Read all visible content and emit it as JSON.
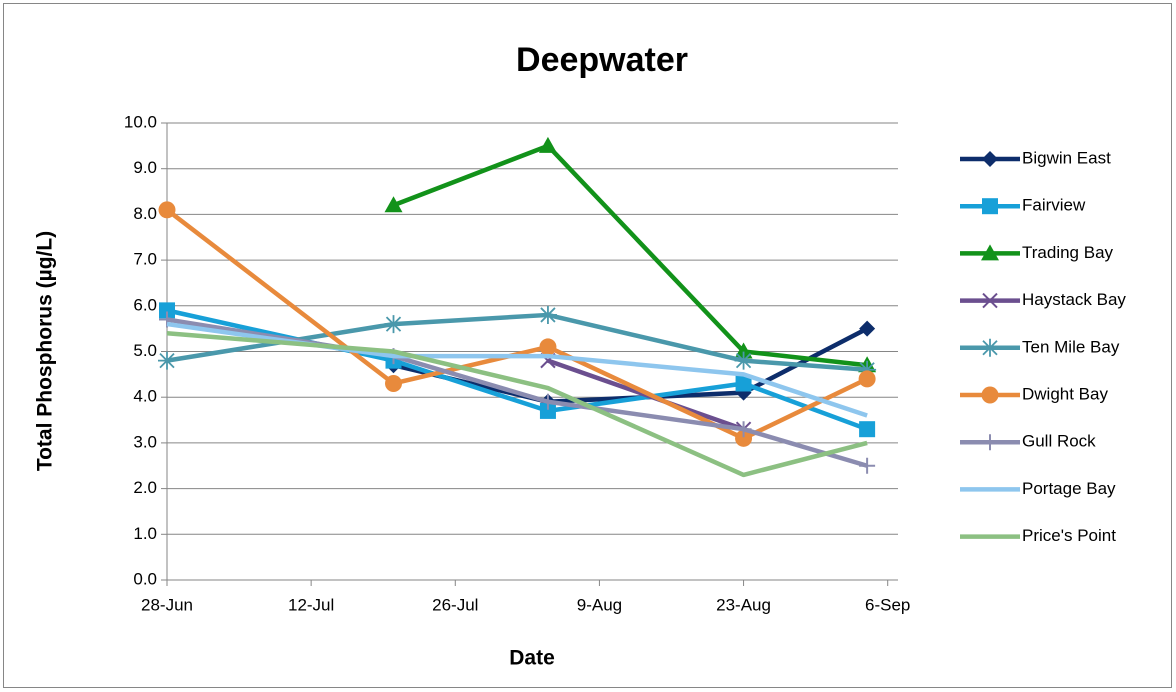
{
  "chart_data": {
    "type": "line",
    "title": "Deepwater",
    "x_label": "Date",
    "y_label": "Total Phosphorus (µg/L)",
    "x": [
      "28-Jun",
      "20-Jul",
      "4-Aug",
      "23-Aug",
      "4-Sep"
    ],
    "xlim": [
      "28-Jun",
      "7-Sep"
    ],
    "xticks": [
      "28-Jun",
      "12-Jul",
      "26-Jul",
      "9-Aug",
      "23-Aug",
      "6-Sep"
    ],
    "ylim": [
      0,
      10
    ],
    "yticks": [
      {
        "value": 0,
        "label": "0.0"
      },
      {
        "value": 1,
        "label": "1.0"
      },
      {
        "value": 2,
        "label": "2.0"
      },
      {
        "value": 3,
        "label": "3.0"
      },
      {
        "value": 4,
        "label": "4.0"
      },
      {
        "value": 5,
        "label": "5.0"
      },
      {
        "value": 6,
        "label": "6.0"
      },
      {
        "value": 7,
        "label": "7.0"
      },
      {
        "value": 8,
        "label": "8.0"
      },
      {
        "value": 9,
        "label": "9.0"
      },
      {
        "value": 10,
        "label": "10.0"
      }
    ],
    "grid": true,
    "legend": "right",
    "series": [
      {
        "name": "Bigwin East",
        "color": "#0d2d6b",
        "marker": "diamond",
        "values": [
          null,
          4.7,
          3.9,
          4.1,
          5.5
        ]
      },
      {
        "name": "Fairview",
        "color": "#17a0d8",
        "marker": "square",
        "values": [
          5.9,
          4.8,
          3.7,
          4.3,
          3.3
        ]
      },
      {
        "name": "Trading Bay",
        "color": "#12921a",
        "marker": "triangle",
        "values": [
          null,
          8.2,
          9.5,
          5.0,
          4.7
        ]
      },
      {
        "name": "Haystack Bay",
        "color": "#6b4f8f",
        "marker": "x",
        "values": [
          null,
          null,
          4.8,
          3.3,
          null
        ]
      },
      {
        "name": "Ten Mile Bay",
        "color": "#4a98ab",
        "marker": "star",
        "values": [
          4.8,
          5.6,
          5.8,
          4.8,
          4.6
        ]
      },
      {
        "name": "Dwight Bay",
        "color": "#e88a3c",
        "marker": "circle",
        "values": [
          8.1,
          4.3,
          5.1,
          3.1,
          4.4
        ]
      },
      {
        "name": "Gull Rock",
        "color": "#8b8cb0",
        "marker": "plus",
        "values": [
          5.7,
          4.9,
          3.9,
          3.3,
          2.5
        ]
      },
      {
        "name": "Portage Bay",
        "color": "#8ec6ee",
        "marker": "none",
        "values": [
          5.6,
          4.9,
          4.9,
          4.5,
          3.6
        ]
      },
      {
        "name": "Price's Point",
        "color": "#8cc082",
        "marker": "none",
        "values": [
          5.4,
          5.0,
          4.2,
          2.3,
          3.0
        ]
      }
    ]
  }
}
